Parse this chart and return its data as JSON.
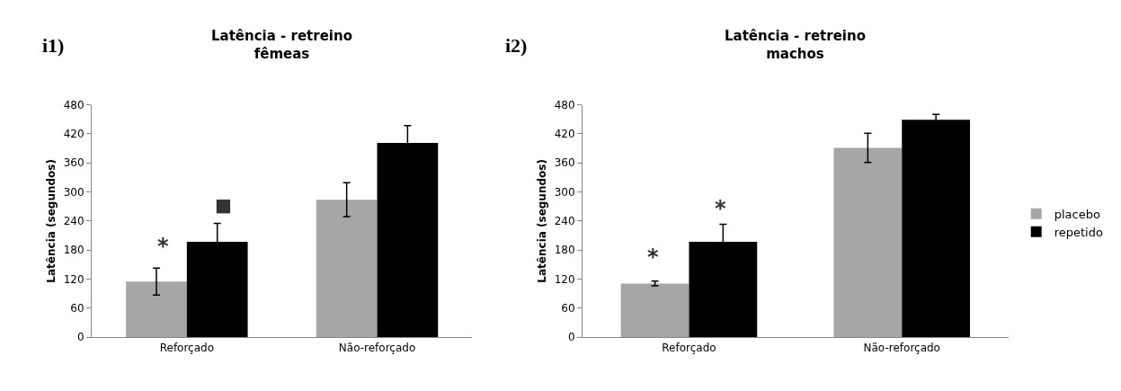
{
  "chart_data": [
    {
      "type": "bar",
      "title": "Latência - retreino",
      "subtitle": "fêmeas",
      "ylabel": "Latência (segundos)",
      "categories": [
        "Reforçado",
        "Não-reforçado"
      ],
      "series": [
        {
          "color": "#a6a6a6",
          "values": [
            115,
            284
          ],
          "errors": [
            28,
            35
          ]
        },
        {
          "color": "#000000",
          "values": [
            197,
            401
          ],
          "errors": [
            38,
            36
          ]
        }
      ],
      "ylim": [
        0,
        480
      ],
      "yticks": [
        0,
        60,
        120,
        180,
        240,
        300,
        360,
        420,
        480
      ],
      "annotations": [
        "i1)",
        "*",
        "■"
      ]
    },
    {
      "type": "bar",
      "title": "Latência - retreino",
      "subtitle": "machos",
      "ylabel": "Latência (segundos)",
      "categories": [
        "Reforçado",
        "Não-reforçado"
      ],
      "series": [
        {
          "name": "placebo",
          "color": "#a6a6a6",
          "values": [
            111,
            391
          ],
          "errors": [
            5,
            30
          ]
        },
        {
          "name": "repetido",
          "color": "#000000",
          "values": [
            197,
            449
          ],
          "errors": [
            36,
            11
          ]
        }
      ],
      "ylim": [
        0,
        480
      ],
      "yticks": [
        0,
        60,
        120,
        180,
        240,
        300,
        360,
        420,
        480
      ],
      "legend": "right",
      "annotations": [
        "i2)",
        "*",
        "*"
      ]
    }
  ]
}
